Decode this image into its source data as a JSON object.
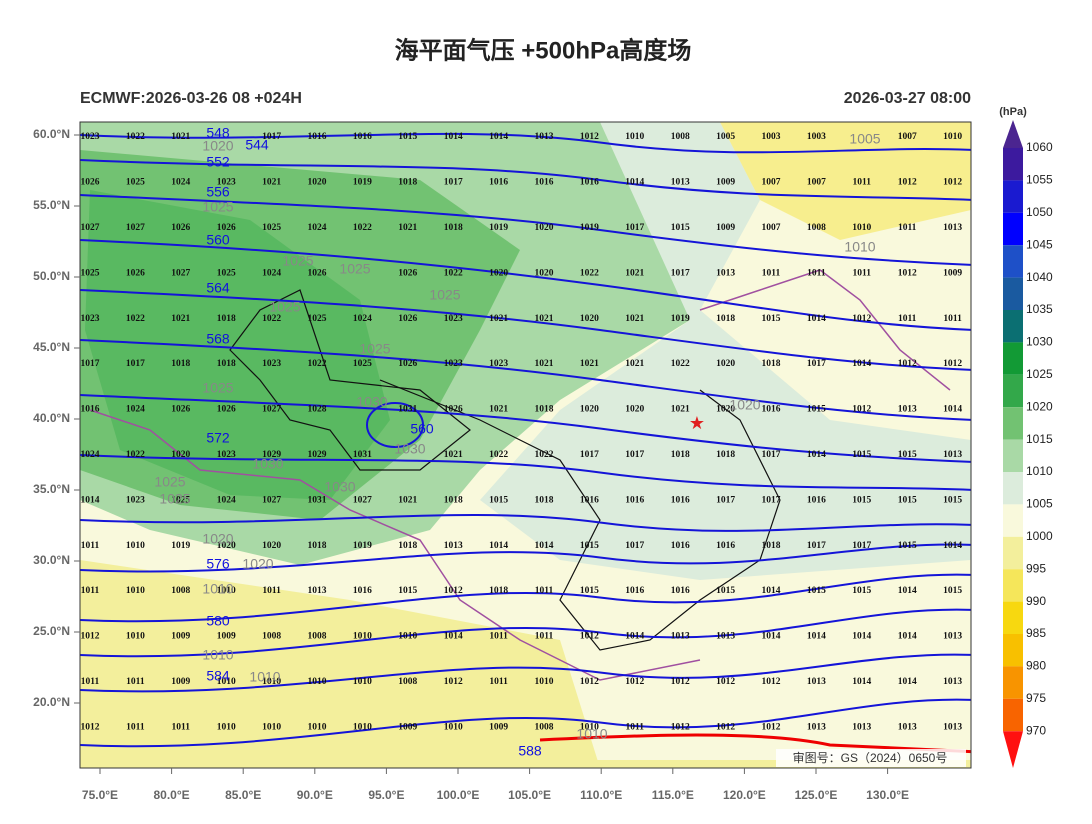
{
  "header": {
    "title": "海平面气压 +500hPa高度场",
    "left": "ECMWF:2026-03-26 08 +024H",
    "right": "2026-03-27 08:00"
  },
  "map": {
    "lat_labels": [
      "60.0°N",
      "55.0°N",
      "50.0°N",
      "45.0°N",
      "40.0°N",
      "35.0°N",
      "30.0°N",
      "25.0°N",
      "20.0°N"
    ],
    "lon_labels": [
      "75.0°E",
      "80.0°E",
      "85.0°E",
      "90.0°E",
      "95.0°E",
      "100.0°E",
      "105.0°E",
      "110.0°E",
      "115.0°E",
      "120.0°E",
      "125.0°E",
      "130.0°E"
    ],
    "grid_values": [
      [
        1023,
        1022,
        1021,
        null,
        1017,
        1016,
        1016,
        1015,
        1014,
        1014,
        1013,
        1012,
        1010,
        1008,
        1005,
        1003,
        1003,
        null,
        1007,
        1010
      ],
      [
        1026,
        1025,
        1024,
        1023,
        1021,
        1020,
        1019,
        1018,
        1017,
        1016,
        1016,
        1016,
        1014,
        1013,
        1009,
        1007,
        1007,
        1011,
        1012,
        1012
      ],
      [
        1027,
        1027,
        1026,
        1026,
        1025,
        1024,
        1022,
        1021,
        1018,
        1019,
        1020,
        1019,
        1017,
        1015,
        1009,
        1007,
        1008,
        1010,
        1011,
        1013
      ],
      [
        1025,
        1026,
        1027,
        1025,
        1024,
        1026,
        null,
        1026,
        1022,
        1020,
        1020,
        1022,
        1021,
        1017,
        1013,
        1011,
        1011,
        1011,
        1012,
        1009
      ],
      [
        1023,
        1022,
        1021,
        1018,
        1022,
        1025,
        1024,
        1026,
        1023,
        1021,
        1021,
        1020,
        1021,
        1019,
        1018,
        1015,
        1014,
        1012,
        1011,
        1011
      ],
      [
        1017,
        1017,
        1018,
        1018,
        1023,
        1022,
        1025,
        1026,
        1023,
        1023,
        1021,
        1021,
        1021,
        1022,
        1020,
        1018,
        1017,
        1014,
        1012,
        1012
      ],
      [
        1016,
        1024,
        1026,
        1026,
        1027,
        1028,
        null,
        1031,
        1026,
        1021,
        1018,
        1020,
        1020,
        1021,
        1020,
        1016,
        1015,
        1012,
        1013,
        1014
      ],
      [
        1024,
        1022,
        1020,
        1023,
        1029,
        1029,
        1031,
        null,
        1021,
        1022,
        1022,
        1017,
        1017,
        1018,
        1018,
        1017,
        1014,
        1015,
        1015,
        1013
      ],
      [
        1014,
        1023,
        1025,
        1024,
        1027,
        1031,
        1027,
        1021,
        1018,
        1015,
        1018,
        1016,
        1016,
        1016,
        1017,
        1017,
        1016,
        1015,
        1015,
        1015
      ],
      [
        1011,
        1010,
        1019,
        1020,
        1020,
        1018,
        1019,
        1018,
        1013,
        1014,
        1014,
        1015,
        1017,
        1016,
        1016,
        1018,
        1017,
        1017,
        1015,
        1014
      ],
      [
        1011,
        1010,
        1008,
        1010,
        1011,
        1013,
        1016,
        1015,
        1012,
        1018,
        1011,
        1015,
        1016,
        1016,
        1015,
        1014,
        1015,
        1015,
        1014,
        1015
      ],
      [
        1012,
        1010,
        1009,
        1009,
        1008,
        1008,
        1010,
        1010,
        1014,
        1011,
        1011,
        1012,
        1014,
        1013,
        1013,
        1014,
        1014,
        1014,
        1014,
        1013
      ],
      [
        1011,
        1011,
        1009,
        1010,
        1010,
        1010,
        1010,
        1008,
        1012,
        1011,
        1010,
        1012,
        1012,
        1012,
        1012,
        1012,
        1013,
        1014,
        1014,
        1013
      ],
      [
        1012,
        1011,
        1011,
        1010,
        1010,
        1010,
        1010,
        1009,
        1010,
        1009,
        1008,
        1010,
        1011,
        1012,
        1012,
        1012,
        1013,
        1013,
        1013,
        1013
      ]
    ],
    "height_labels": [
      "548",
      "544",
      "552",
      "556",
      "560",
      "564",
      "568",
      "572",
      "576",
      "580",
      "584",
      "560",
      "588"
    ],
    "isobar_labels": [
      "1020",
      "1025",
      "1025",
      "1025",
      "1025",
      "1025",
      "1025",
      "1025",
      "1030",
      "1030",
      "1030",
      "1030",
      "1025",
      "1025",
      "1020",
      "1020",
      "1010",
      "1010",
      "1010",
      "1010",
      "1020",
      "1010",
      "1005"
    ],
    "note": "审图号：GS（2024）0650号"
  },
  "colorbar": {
    "unit": "(hPa)",
    "levels": [
      1060,
      1055,
      1050,
      1045,
      1040,
      1035,
      1030,
      1025,
      1020,
      1015,
      1010,
      1005,
      1000,
      995,
      990,
      985,
      980,
      975,
      970
    ],
    "colors": [
      "#4b2590",
      "#3c1a9e",
      "#1a1ad0",
      "#0000ff",
      "#1e50c8",
      "#1a5aa0",
      "#0b6f72",
      "#129a35",
      "#33a84a",
      "#72c272",
      "#a9d9a6",
      "#dcecdc",
      "#f9f9dc",
      "#f3ef9c",
      "#f5e65a",
      "#f7d810",
      "#f8c000",
      "#f89400",
      "#f86400",
      "#f82000",
      "#ff1010"
    ]
  }
}
